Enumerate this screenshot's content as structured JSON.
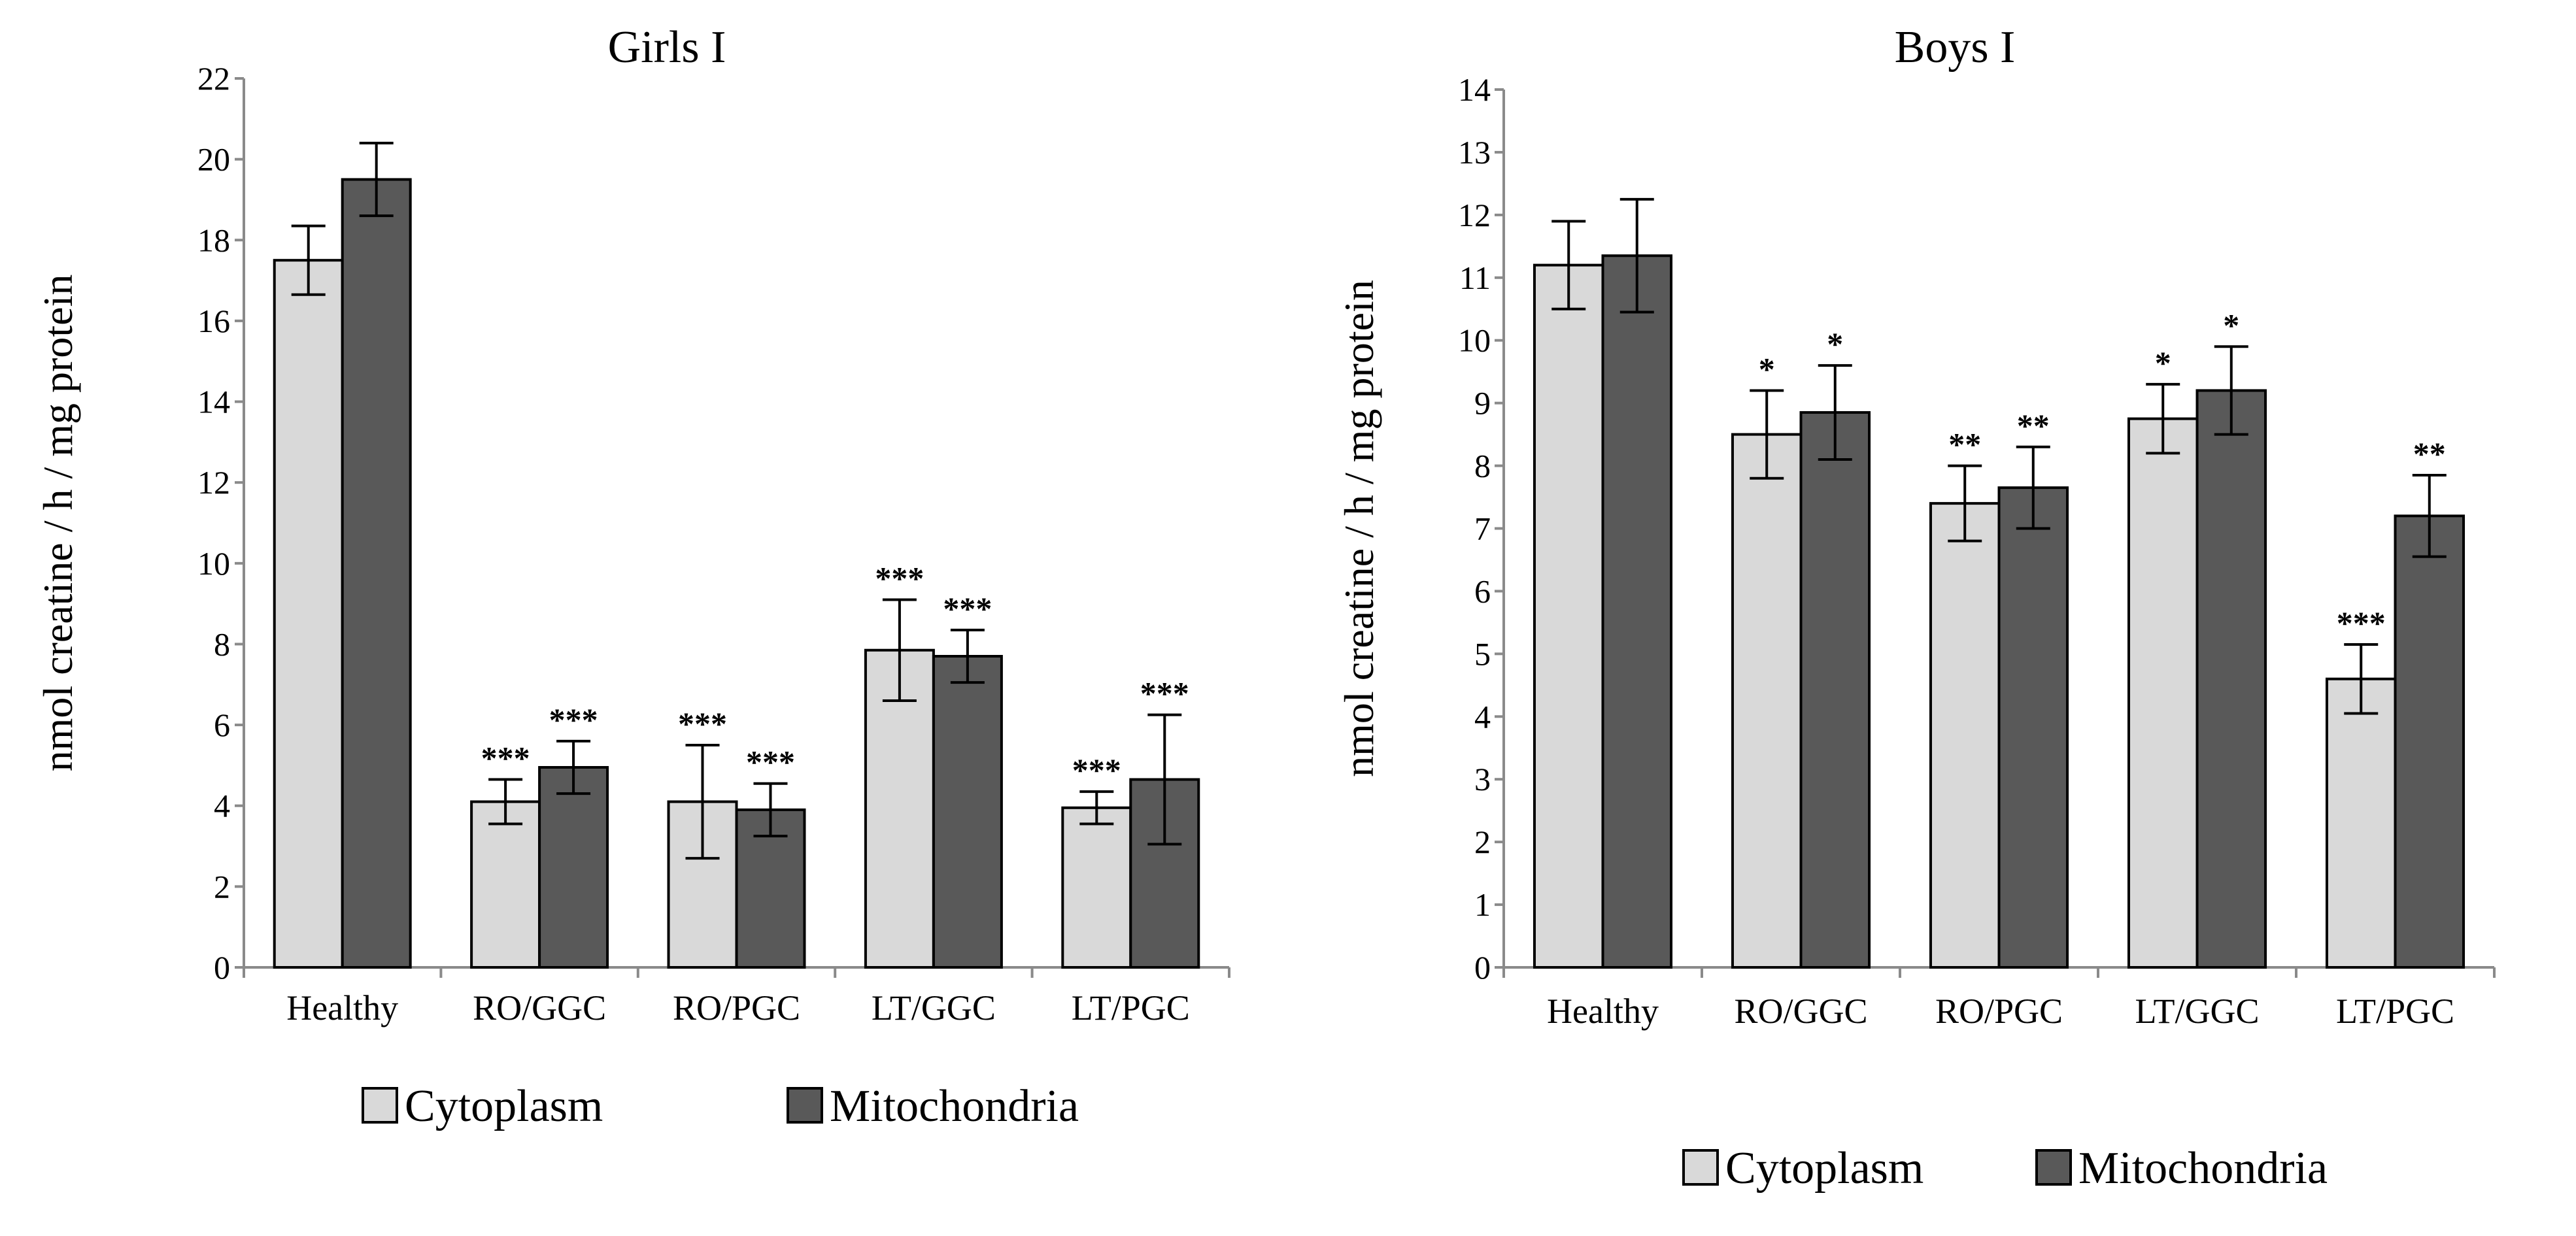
{
  "colors": {
    "cytoplasm": "#d9d9d9",
    "mitochondria": "#595959",
    "axis": "#8a8a8a",
    "bar_outline": "#000000",
    "text": "#000000"
  },
  "chart_data": [
    {
      "type": "bar",
      "title": "Girls I",
      "xlabel": "",
      "ylabel": "nmol creatine / h / mg protein",
      "ylim": [
        0,
        22
      ],
      "yticks": [
        0,
        2,
        4,
        6,
        8,
        10,
        12,
        14,
        16,
        18,
        20,
        22
      ],
      "grid": false,
      "legend_position": "bottom",
      "categories": [
        "Healthy",
        "RO/GGC",
        "RO/PGC",
        "LT/GGC",
        "LT/PGC"
      ],
      "series": [
        {
          "name": "Cytoplasm",
          "color": "#d9d9d9",
          "values": [
            17.5,
            4.1,
            4.1,
            7.85,
            3.95
          ],
          "errors": [
            0.85,
            0.55,
            1.4,
            1.25,
            0.4
          ],
          "significance": [
            "",
            "***",
            "***",
            "***",
            "***"
          ]
        },
        {
          "name": "Mitochondria",
          "color": "#595959",
          "values": [
            19.5,
            4.95,
            3.9,
            7.7,
            4.65
          ],
          "errors": [
            0.9,
            0.65,
            0.65,
            0.65,
            1.6
          ],
          "significance": [
            "",
            "***",
            "***",
            "***",
            "***"
          ]
        }
      ]
    },
    {
      "type": "bar",
      "title": "Boys I",
      "xlabel": "",
      "ylabel": "nmol creatine / h / mg protein",
      "ylim": [
        0,
        14
      ],
      "yticks": [
        0,
        1,
        2,
        3,
        4,
        5,
        6,
        7,
        8,
        9,
        10,
        11,
        12,
        13,
        14
      ],
      "grid": false,
      "legend_position": "bottom",
      "categories": [
        "Healthy",
        "RO/GGC",
        "RO/PGC",
        "LT/GGC",
        "LT/PGC"
      ],
      "series": [
        {
          "name": "Cytoplasm",
          "color": "#d9d9d9",
          "values": [
            11.2,
            8.5,
            7.4,
            8.75,
            4.6
          ],
          "errors": [
            0.7,
            0.7,
            0.6,
            0.55,
            0.55
          ],
          "significance": [
            "",
            "*",
            "**",
            "*",
            "***"
          ]
        },
        {
          "name": "Mitochondria",
          "color": "#595959",
          "values": [
            11.35,
            8.85,
            7.65,
            9.2,
            7.2
          ],
          "errors": [
            0.9,
            0.75,
            0.65,
            0.7,
            0.65
          ],
          "significance": [
            "",
            "*",
            "**",
            "*",
            "**"
          ]
        }
      ]
    }
  ]
}
